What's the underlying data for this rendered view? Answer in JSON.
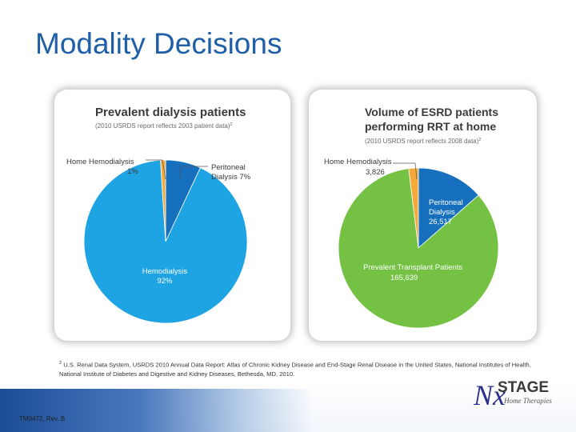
{
  "slide": {
    "title": "Modality Decisions",
    "revision": "TM0472, Rev. B"
  },
  "footnote": {
    "marker": "2",
    "text": "U.S. Renal Data System, USRDS 2010 Annual Data Report: Atlas of Chronic Kidney Disease and End-Stage Renal Disease in the United States, National Institutes of Health, National Institute of Diabetes and Digestive and Kidney Diseases, Bethesda, MD, 2010."
  },
  "logo": {
    "mark": "Nx",
    "name": "STAGE",
    "sub": "Home Therapies"
  },
  "chart_data": [
    {
      "type": "pie",
      "title": "Prevalent dialysis patients",
      "subtitle": "(2010 USRDS report reflects 2003 patient data)",
      "subtitle_marker": "2",
      "slices": [
        {
          "label": "Hemodialysis",
          "display": "92%",
          "value": 92,
          "color": "#1ea3e3"
        },
        {
          "label": "Home Hemodialysis",
          "display": "1%",
          "value": 1,
          "color": "#f4a93b"
        },
        {
          "label": "Peritoneal Dialysis",
          "display": "7%",
          "value": 7,
          "color": "#1670bd"
        }
      ]
    },
    {
      "type": "pie",
      "title_lines": [
        "Volume of ESRD patients",
        "performing RRT at home"
      ],
      "subtitle": "(2010 USRDS report reflects 2008 data)",
      "subtitle_marker": "2",
      "slices": [
        {
          "label": "Prevalent Transplant Patients",
          "display": "165,639",
          "value": 165639,
          "color": "#74c144"
        },
        {
          "label": "Home Hemodialysis",
          "display": "3,826",
          "value": 3826,
          "color": "#f4a93b"
        },
        {
          "label": "Peritoneal Dialysis",
          "display": "26,517",
          "value": 26517,
          "color": "#1670bd"
        }
      ]
    }
  ]
}
